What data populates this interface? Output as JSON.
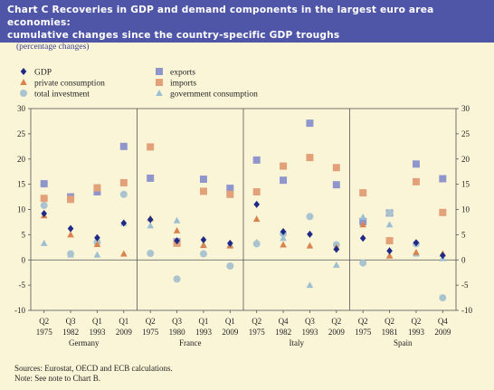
{
  "title_line1": "Chart C Recoveries in GDP and demand components in the largest euro area economies:",
  "title_line2": "cumulative changes since the country-specific GDP troughs",
  "subtitle": "(percentage changes)",
  "source_line1": "Sources: Eurostat, OECD and ECB calculations.",
  "source_line2": "Note: See note to Chart B.",
  "colors": {
    "header": "#4f56a8",
    "panel": "#fbf5d8",
    "gdp": "#1f2a86",
    "exports": "#8f96cc",
    "private_consumption": "#d9844f",
    "imports": "#e2a178",
    "total_investment": "#a9c4cf",
    "government_consumption": "#9cc0d1"
  },
  "chart_data": {
    "type": "scatter",
    "title": "Chart C Recoveries in GDP and demand components in the largest euro area economies: cumulative changes since the country-specific GDP troughs",
    "ylabel": "",
    "ylim": [
      -10,
      30
    ],
    "yticks": [
      -10,
      -5,
      0,
      5,
      10,
      15,
      20,
      25,
      30
    ],
    "grid": false,
    "legend": "top-left",
    "groups": [
      {
        "name": "Germany",
        "periods": [
          {
            "q": "Q2",
            "y": "1975"
          },
          {
            "q": "Q3",
            "y": "1982"
          },
          {
            "q": "Q1",
            "y": "1993"
          },
          {
            "q": "Q1",
            "y": "2009"
          }
        ]
      },
      {
        "name": "France",
        "periods": [
          {
            "q": "Q2",
            "y": "1975"
          },
          {
            "q": "Q3",
            "y": "1980"
          },
          {
            "q": "Q1",
            "y": "1993"
          },
          {
            "q": "Q1",
            "y": "2009"
          }
        ]
      },
      {
        "name": "Italy",
        "periods": [
          {
            "q": "Q2",
            "y": "1975"
          },
          {
            "q": "Q4",
            "y": "1982"
          },
          {
            "q": "Q3",
            "y": "1993"
          },
          {
            "q": "Q2",
            "y": "2009"
          }
        ]
      },
      {
        "name": "Spain",
        "periods": [
          {
            "q": "Q2",
            "y": "1975"
          },
          {
            "q": "Q2",
            "y": "1981"
          },
          {
            "q": "Q2",
            "y": "1993"
          },
          {
            "q": "Q4",
            "y": "2009"
          }
        ]
      }
    ],
    "series": [
      {
        "name": "GDP",
        "marker": "diamond",
        "color": "#1f2a86",
        "values": [
          9.2,
          6.2,
          4.4,
          7.3,
          8.0,
          3.8,
          4.0,
          3.3,
          11.0,
          5.6,
          5.1,
          2.1,
          4.3,
          1.8,
          3.4,
          0.9
        ]
      },
      {
        "name": "private consumption",
        "marker": "triangle",
        "color": "#d9844f",
        "values": [
          8.8,
          5.0,
          3.1,
          1.2,
          8.2,
          5.8,
          2.9,
          2.8,
          8.1,
          3.0,
          2.8,
          2.5,
          7.0,
          0.8,
          1.5,
          1.2
        ]
      },
      {
        "name": "total investment",
        "marker": "circle",
        "color": "#a9c4cf",
        "values": [
          10.8,
          1.2,
          3.5,
          13.0,
          1.3,
          -3.8,
          1.2,
          -1.2,
          3.2,
          5.2,
          8.6,
          3.0,
          -0.6,
          9.3,
          3.2,
          -7.5
        ]
      },
      {
        "name": "exports",
        "marker": "square",
        "color": "#8f96cc",
        "values": [
          15.1,
          12.5,
          13.5,
          22.5,
          16.2,
          3.6,
          16.0,
          14.2,
          19.8,
          15.8,
          27.1,
          14.9,
          7.6,
          9.3,
          19.0,
          16.1
        ]
      },
      {
        "name": "imports",
        "marker": "square",
        "color": "#e2a178",
        "values": [
          12.2,
          12.0,
          14.3,
          15.3,
          22.4,
          3.3,
          13.6,
          13.0,
          13.5,
          18.6,
          20.3,
          18.3,
          13.3,
          3.8,
          15.5,
          9.4
        ]
      },
      {
        "name": "government consumption",
        "marker": "triangle",
        "color": "#9cc0d1",
        "values": [
          3.3,
          1.0,
          1.0,
          7.3,
          6.8,
          7.8,
          3.0,
          3.0,
          3.5,
          4.3,
          -5.0,
          -1.0,
          8.5,
          7.0,
          1.2,
          0.3
        ]
      }
    ]
  }
}
